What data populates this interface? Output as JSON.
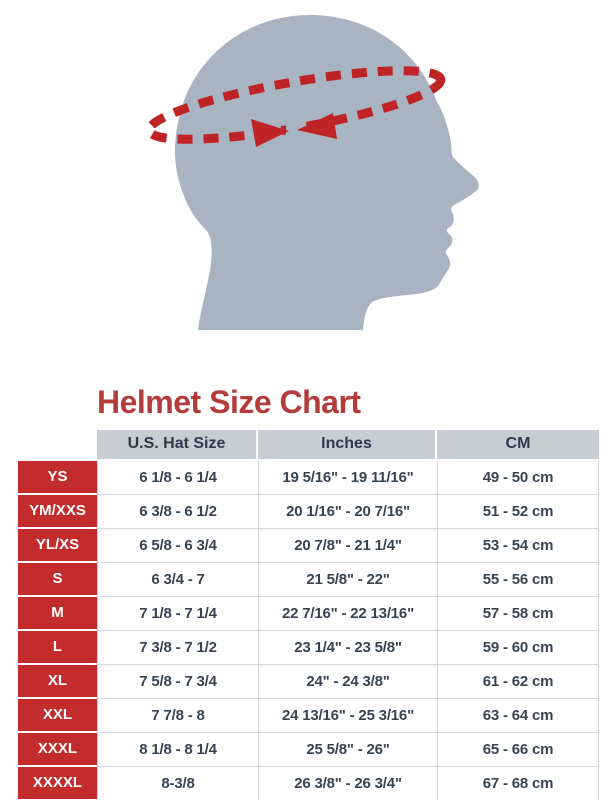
{
  "title": {
    "text": "Helmet Size Chart"
  },
  "figure": {
    "description": "Gray head profile silhouette with red dashed measuring tape around the crown, arrows meeting at the forehead",
    "head_color": "#A9B4C3",
    "tape_color": "#BE2425"
  },
  "colors": {
    "accent_red": "#C32C2C",
    "title_red": "#B23C3C",
    "header_bg": "#C8CCD3",
    "header_text": "#2E3B4D",
    "cell_text": "#394453",
    "border": "#D2D5DA"
  },
  "chart_data": {
    "type": "table",
    "title": "Helmet Size Chart",
    "columns": [
      "",
      "U.S. Hat Size",
      "Inches",
      "CM"
    ],
    "rows": [
      [
        "YS",
        "6 1/8 - 6 1/4",
        "19 5/16\" - 19 11/16\"",
        "49 - 50 cm"
      ],
      [
        "YM/XXS",
        "6 3/8 - 6 1/2",
        "20 1/16\" - 20 7/16\"",
        "51 - 52 cm"
      ],
      [
        "YL/XS",
        "6 5/8 - 6 3/4",
        "20 7/8\" - 21 1/4\"",
        "53 - 54 cm"
      ],
      [
        "S",
        "6 3/4 - 7",
        "21 5/8\" - 22\"",
        "55 - 56 cm"
      ],
      [
        "M",
        "7 1/8 - 7 1/4",
        "22 7/16\" - 22 13/16\"",
        "57 - 58 cm"
      ],
      [
        "L",
        "7 3/8 - 7 1/2",
        "23 1/4\" - 23 5/8\"",
        "59 - 60 cm"
      ],
      [
        "XL",
        "7 5/8 - 7 3/4",
        "24\" - 24 3/8\"",
        "61 - 62 cm"
      ],
      [
        "XXL",
        "7 7/8 - 8",
        "24 13/16\" - 25 3/16\"",
        "63 - 64 cm"
      ],
      [
        "XXXL",
        "8 1/8 - 8 1/4",
        "25 5/8\" - 26\"",
        "65 - 66 cm"
      ],
      [
        "XXXXL",
        "8-3/8",
        "26 3/8\" - 26 3/4\"",
        "67 - 68 cm"
      ]
    ]
  }
}
